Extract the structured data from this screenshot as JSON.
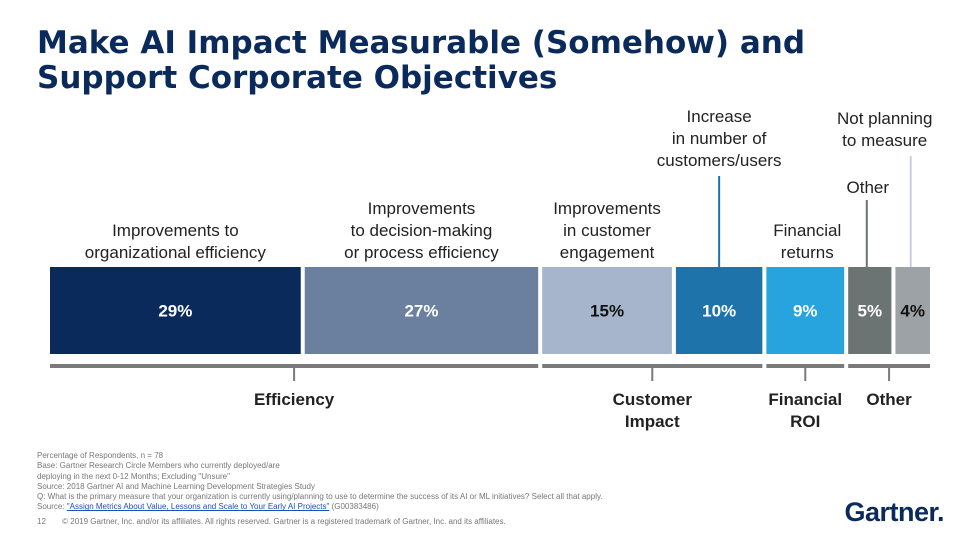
{
  "title": {
    "line1": "Make AI Impact Measurable (Somehow) and",
    "line2": "Support Corporate Objectives"
  },
  "chart_data": {
    "type": "bar",
    "orientation": "horizontal-stacked",
    "unit": "%",
    "series": [
      {
        "label_lines": [
          "Improvements to",
          "organizational efficiency"
        ],
        "value": 29,
        "value_label": "29%",
        "color": "#0b2a5c",
        "text_color": "#ffffff"
      },
      {
        "label_lines": [
          "Improvements",
          "to decision-making",
          "or process efficiency"
        ],
        "value": 27,
        "value_label": "27%",
        "color": "#6b7f9e",
        "text_color": "#ffffff"
      },
      {
        "label_lines": [
          "Improvements",
          "in customer",
          "engagement"
        ],
        "value": 15,
        "value_label": "15%",
        "color": "#a7b5cc",
        "text_color": "#111111"
      },
      {
        "label_lines": [
          "Increase",
          "in number of",
          "customers/users"
        ],
        "value": 10,
        "value_label": "10%",
        "color": "#1d73aa",
        "text_color": "#ffffff"
      },
      {
        "label_lines": [
          "Financial",
          "returns"
        ],
        "value": 9,
        "value_label": "9%",
        "color": "#27a3dd",
        "text_color": "#ffffff"
      },
      {
        "label_lines": [
          "Other"
        ],
        "value": 5,
        "value_label": "5%",
        "color": "#6b7373",
        "text_color": "#ffffff"
      },
      {
        "label_lines": [
          "Not planning",
          "to measure"
        ],
        "value": 4,
        "value_label": "4%",
        "color": "#9da2a6",
        "text_color": "#111111"
      }
    ],
    "groups": [
      {
        "label_lines": [
          "Efficiency"
        ],
        "first": 0,
        "last": 1
      },
      {
        "label_lines": [
          "Customer",
          "Impact"
        ],
        "first": 2,
        "last": 3
      },
      {
        "label_lines": [
          "Financial",
          "ROI"
        ],
        "first": 4,
        "last": 4
      },
      {
        "label_lines": [
          "Other"
        ],
        "first": 5,
        "last": 6
      }
    ]
  },
  "footer": {
    "lines": [
      "Percentage of Respondents, n = 78",
      "Base: Gartner Research Circle Members who currently deployed/are",
      "deploying in the next 0-12 Months; Excluding \"Unsure\"",
      "Source: 2018 Gartner AI and Machine Learning Development Strategies Study",
      "Q: What is the primary measure that your organization is currently using/planning to use to determine the success of its AI or ML initiatives? Select all that apply."
    ],
    "source_prefix": "Source: ",
    "source_link": "\"Assign Metrics About Value, Lessons and Scale to Your Early AI Projects\"",
    "source_suffix": " (G00383486)",
    "page_number": "12",
    "copyright": "© 2019 Gartner, Inc. and/or its affiliates. All rights reserved. Gartner is a registered trademark of Gartner, Inc. and its affiliates."
  },
  "logo": {
    "text": "Gartner",
    "dot": "."
  }
}
